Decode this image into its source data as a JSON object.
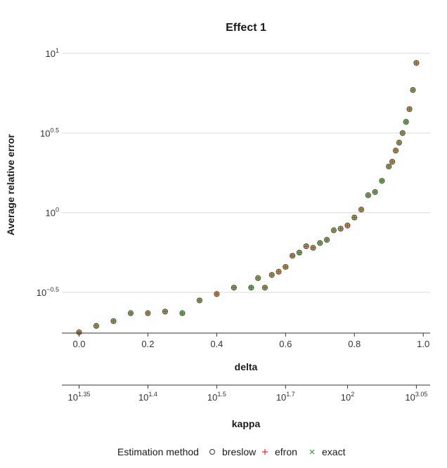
{
  "chart_data": {
    "type": "scatter",
    "title": "Effect 1",
    "ylabel": "Average relative error",
    "xlabel": "delta",
    "x2label": "kappa",
    "y_scale": "log10",
    "ylim": [
      -0.755,
      1.07
    ],
    "xlim": [
      -0.05,
      1.02
    ],
    "grid": "horizontal-major",
    "y_ticks": [
      {
        "base": "10",
        "exp": "−0.5",
        "value": -0.5
      },
      {
        "base": "10",
        "exp": "0",
        "value": 0
      },
      {
        "base": "10",
        "exp": "0.5",
        "value": 0.5
      },
      {
        "base": "10",
        "exp": "1",
        "value": 1
      }
    ],
    "x_ticks": [
      {
        "label": "0.0",
        "value": 0.0
      },
      {
        "label": "0.2",
        "value": 0.2
      },
      {
        "label": "0.4",
        "value": 0.4
      },
      {
        "label": "0.6",
        "value": 0.6
      },
      {
        "label": "0.8",
        "value": 0.8
      },
      {
        "label": "1.0",
        "value": 1.0
      }
    ],
    "x2_ticks": [
      {
        "base": "10",
        "exp": "1.35",
        "value": 0.0
      },
      {
        "base": "10",
        "exp": "1.4",
        "value": 0.2
      },
      {
        "base": "10",
        "exp": "1.5",
        "value": 0.4
      },
      {
        "base": "10",
        "exp": "1.7",
        "value": 0.6
      },
      {
        "base": "10",
        "exp": "2",
        "value": 0.78
      },
      {
        "base": "10",
        "exp": "3.05",
        "value": 0.98
      }
    ],
    "legend": {
      "title": "Estimation method",
      "position": "bottom",
      "entries": [
        {
          "name": "breslow",
          "symbol": "circle",
          "color": "#333333"
        },
        {
          "name": "efron",
          "symbol": "plus",
          "color": "#f01d1d"
        },
        {
          "name": "exact",
          "symbol": "cross",
          "color": "#2ca02c"
        }
      ]
    },
    "x": [
      0.0,
      0.05,
      0.1,
      0.15,
      0.2,
      0.25,
      0.3,
      0.35,
      0.4,
      0.45,
      0.5,
      0.52,
      0.54,
      0.56,
      0.58,
      0.6,
      0.62,
      0.64,
      0.66,
      0.68,
      0.7,
      0.72,
      0.74,
      0.76,
      0.78,
      0.8,
      0.82,
      0.84,
      0.86,
      0.88,
      0.9,
      0.91,
      0.92,
      0.93,
      0.94,
      0.95,
      0.96,
      0.97,
      0.98
    ],
    "series": [
      {
        "name": "breslow",
        "values": [
          -0.75,
          -0.71,
          -0.68,
          -0.63,
          -0.63,
          -0.62,
          -0.63,
          -0.55,
          -0.51,
          -0.47,
          -0.47,
          -0.41,
          -0.47,
          -0.39,
          -0.37,
          -0.34,
          -0.27,
          -0.25,
          -0.21,
          -0.22,
          -0.19,
          -0.17,
          -0.11,
          -0.1,
          -0.08,
          -0.03,
          0.02,
          0.11,
          0.13,
          0.2,
          0.29,
          0.32,
          0.39,
          0.44,
          0.5,
          0.57,
          0.65,
          0.77,
          0.94
        ]
      },
      {
        "name": "efron",
        "values": [
          -0.75,
          -0.71,
          -0.68,
          -0.63,
          -0.63,
          -0.62,
          -0.63,
          -0.55,
          -0.51,
          -0.47,
          -0.47,
          -0.41,
          -0.47,
          -0.39,
          -0.37,
          -0.34,
          -0.27,
          -0.25,
          -0.21,
          -0.22,
          -0.19,
          -0.17,
          -0.11,
          -0.1,
          -0.08,
          -0.03,
          0.02,
          0.11,
          0.13,
          0.2,
          0.29,
          0.32,
          0.39,
          0.44,
          0.5,
          0.57,
          0.65,
          0.77,
          0.94
        ]
      },
      {
        "name": "exact",
        "values": [
          -0.75,
          -0.71,
          -0.68,
          -0.63,
          -0.63,
          -0.62,
          -0.63,
          -0.55,
          -0.51,
          -0.47,
          -0.47,
          -0.41,
          -0.47,
          -0.39,
          -0.37,
          -0.34,
          -0.27,
          -0.25,
          -0.21,
          -0.22,
          -0.19,
          -0.17,
          -0.11,
          -0.1,
          -0.08,
          -0.03,
          0.02,
          0.11,
          0.13,
          0.2,
          0.29,
          0.32,
          0.39,
          0.44,
          0.5,
          0.57,
          0.65,
          0.77,
          0.94
        ]
      }
    ]
  }
}
